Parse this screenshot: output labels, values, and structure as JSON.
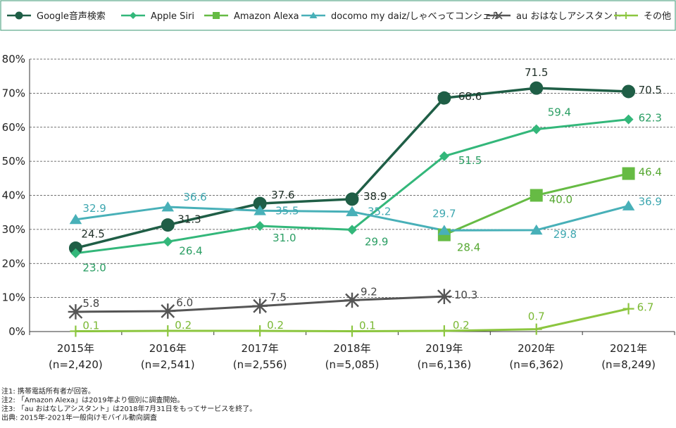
{
  "chart_data": {
    "type": "line",
    "title": "",
    "xlabel": "",
    "ylabel": "",
    "ylim": [
      0,
      80
    ],
    "y_ticks": [
      "0%",
      "10%",
      "20%",
      "30%",
      "40%",
      "50%",
      "60%",
      "70%",
      "80%"
    ],
    "grid": "horizontal dashed",
    "legend_position": "top",
    "categories": [
      "2015年",
      "2016年",
      "2017年",
      "2018年",
      "2019年",
      "2020年",
      "2021年"
    ],
    "category_sublabels": [
      "(n=2,420)",
      "(n=2,541)",
      "(n=2,556)",
      "(n=5,085)",
      "(n=6,136)",
      "(n=6,362)",
      "(n=8,249)"
    ],
    "series": [
      {
        "name": "Google音声検索",
        "marker": "circle",
        "color": "#1f5e46",
        "label_color": "#1f2f27",
        "values": [
          24.5,
          31.3,
          37.6,
          38.9,
          68.6,
          71.5,
          70.5
        ]
      },
      {
        "name": "Apple Siri",
        "marker": "diamond",
        "color": "#33b77a",
        "label_color": "#2a9e63",
        "values": [
          23.0,
          26.4,
          31.0,
          29.9,
          51.5,
          59.4,
          62.3
        ]
      },
      {
        "name": "Amazon Alexa",
        "marker": "square",
        "color": "#66bb44",
        "label_color": "#56a832",
        "values": [
          null,
          null,
          null,
          null,
          28.4,
          40.0,
          46.4
        ]
      },
      {
        "name": "docomo my daiz/しゃべってコンシェル",
        "marker": "triangle",
        "color": "#48b0b8",
        "label_color": "#3ea7b0",
        "values": [
          32.9,
          36.6,
          35.5,
          35.2,
          29.7,
          29.8,
          36.9
        ]
      },
      {
        "name": "au おはなしアシスタント",
        "marker": "x",
        "color": "#555555",
        "label_color": "#444444",
        "values": [
          5.8,
          6.0,
          7.5,
          9.2,
          10.3,
          null,
          null
        ]
      },
      {
        "name": "その他",
        "marker": "plus",
        "color": "#8cc63f",
        "label_color": "#7ab833",
        "values": [
          0.1,
          0.2,
          0.2,
          0.1,
          0.2,
          0.7,
          6.7
        ]
      }
    ],
    "notes": [
      "注1: 携帯電話所有者が回答。",
      "注2: 「Amazon Alexa」は2019年より個別に調査開始。",
      "注3: 「au おはなしアシスタント」は2018年7月31日をもってサービスを終了。",
      "出典: 2015年-2021年一般向けモバイル動向調査"
    ]
  }
}
